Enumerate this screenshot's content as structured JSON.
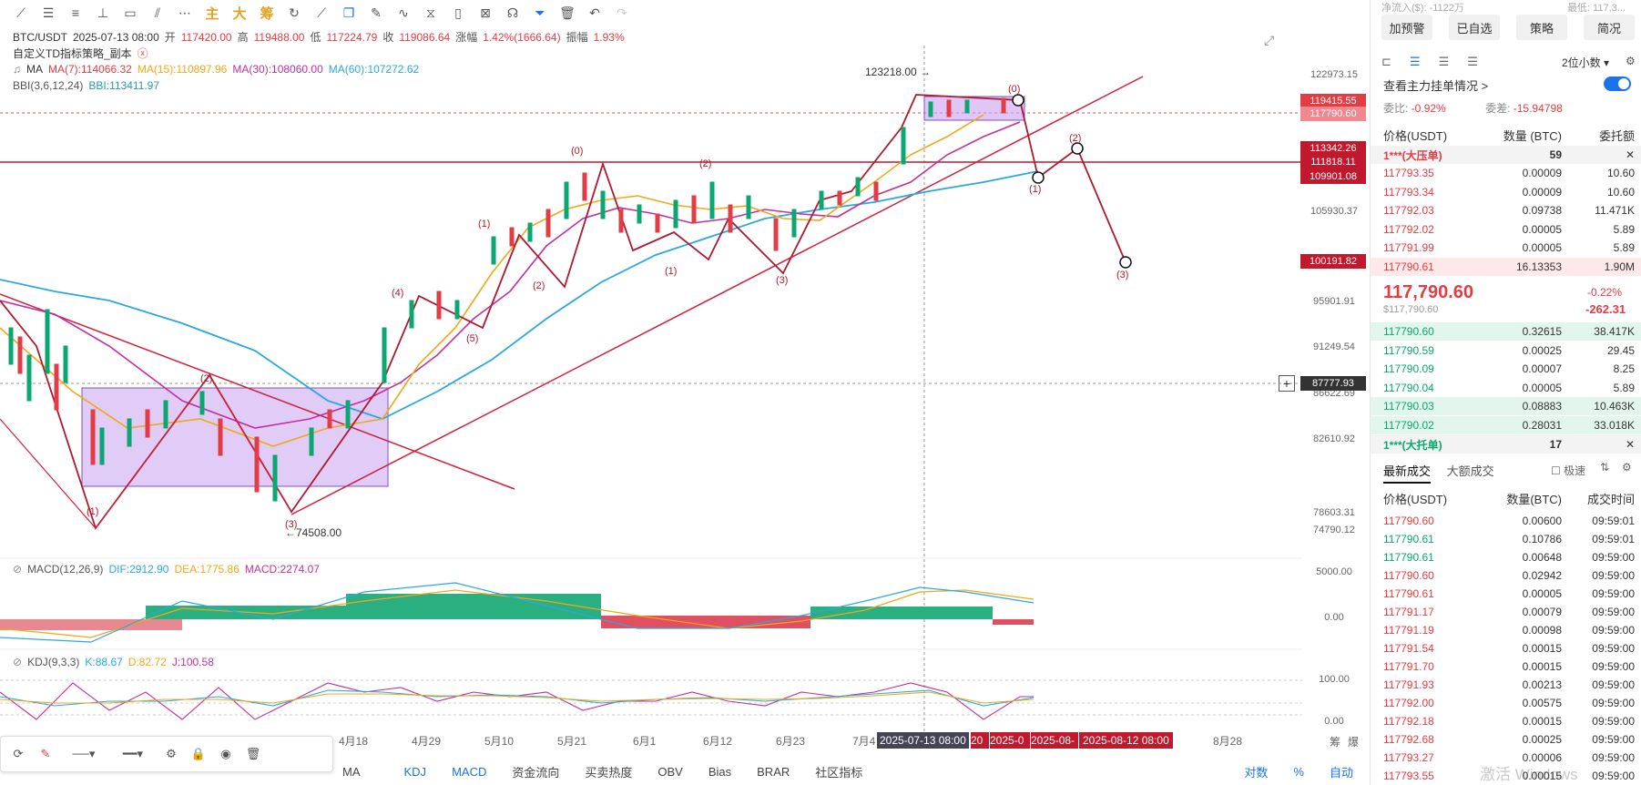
{
  "toolbar": {
    "icons": [
      "line-tool-icon",
      "hline-icon",
      "channel-icon",
      "crosshair-icon",
      "rect-icon",
      "fib-icon",
      "more-icon"
    ],
    "orange_labels": [
      "主",
      "大",
      "筹"
    ],
    "right_icons": [
      "indicator-icon",
      "ruler-icon",
      "brush-icon",
      "wave-icon",
      "calendar-icon",
      "note-icon",
      "measure-icon",
      "filter-icon",
      "trash-icon",
      "undo-icon",
      "redo-icon"
    ]
  },
  "ohlc": {
    "symbol": "BTC/USDT",
    "date": "2025-07-13 08:00",
    "open_label": "开",
    "open": "117420.00",
    "high_label": "高",
    "high": "119488.00",
    "low_label": "低",
    "low": "117224.79",
    "close_label": "收",
    "close": "119086.64",
    "change_label": "涨幅",
    "change": "1.42%(1666.64)",
    "amp_label": "振幅",
    "amp": "1.93%"
  },
  "strategy_label": "自定义TD指标策略_副本",
  "ma_legend": {
    "name": "MA",
    "ma7": "MA(7):114066.32",
    "ma15": "MA(15):110897.96",
    "ma30": "MA(30):108060.00",
    "ma60": "MA(60):107272.62"
  },
  "bbi_legend": {
    "name": "BBI(3,6,12,24)",
    "value": "BBI:113411.97"
  },
  "macd_legend": {
    "name": "MACD(12,26,9)",
    "dif": "DIF:2912.90",
    "dea": "DEA:1775.86",
    "macd": "MACD:2274.07"
  },
  "kdj_legend": {
    "name": "KDJ(9,3,3)",
    "k": "K:88.67",
    "d": "D:82.72",
    "j": "J:100.58"
  },
  "price_axis": [
    "122973.15",
    "105930.37",
    "95901.91",
    "91249.54",
    "86622.69",
    "82610.92",
    "78603.31",
    "74790.12"
  ],
  "macd_axis": [
    "5000.00",
    "0.00"
  ],
  "kdj_axis": [
    "100.00",
    "0.00"
  ],
  "price_tags": {
    "t1": "119415.55",
    "t2": "117790.60",
    "t3": "113342.26",
    "t4": "111818.11",
    "t5": "109901.08",
    "t6": "100191.82",
    "crosshair": "87777.93"
  },
  "annotations": {
    "high": "123218.00 →",
    "low": "←74508.00",
    "waves": [
      "(1)",
      "(2)",
      "(3)",
      "(4)",
      "(5)",
      "(1)",
      "(2)",
      "(0)",
      "(2)",
      "(1)",
      "(3)",
      "(0)",
      "(2)",
      "(1)",
      "(3)"
    ]
  },
  "x_axis": [
    "4月18",
    "4月29",
    "5月10",
    "5月21",
    "6月1",
    "6月12",
    "6月23",
    "7月4",
    "8月28"
  ],
  "x_tags": {
    "current": "2025-07-13 08:00",
    "a": "20",
    "b": "2025-0",
    "c": "2025-08-",
    "d": "2025-08-12 08:00"
  },
  "axis_controls": {
    "log": "对数",
    "pct": "%",
    "auto": "自动",
    "corner1": "筹",
    "corner2": "爆"
  },
  "bottom_tabs": [
    "MA",
    "KDJ",
    "MACD",
    "资金流向",
    "买卖热度",
    "OBV",
    "Bias",
    "BRAR",
    "社区指标"
  ],
  "right_panel": {
    "top_cut_left": "净流入($): -1122万",
    "top_cut_right": "最低: 117,3...",
    "buttons": [
      "加预警",
      "已自选",
      "策略",
      "简况"
    ],
    "decimals": "2位小数",
    "order_check": "查看主力挂单情况 >",
    "wb_label": "委比:",
    "wb": "-0.92%",
    "wc_label": "委差:",
    "wc": "-15.94798",
    "book_headers": [
      "价格(USDT)",
      "数量 (BTC)",
      "委托额"
    ],
    "big_ask": {
      "label": "1***(大压单)",
      "qty": "59"
    },
    "asks": [
      [
        "117793.35",
        "0.00009",
        "10.60"
      ],
      [
        "117793.34",
        "0.00009",
        "10.60"
      ],
      [
        "117792.03",
        "0.09738",
        "11.471K"
      ],
      [
        "117792.02",
        "0.00005",
        "5.89"
      ],
      [
        "117791.99",
        "0.00005",
        "5.89"
      ],
      [
        "117790.61",
        "16.13353",
        "1.90M"
      ]
    ],
    "last_price": "117,790.60",
    "last_price_usd": "$117,790.60",
    "last_change_pct": "-0.22%",
    "last_change_abs": "-262.31",
    "bids": [
      [
        "117790.60",
        "0.32615",
        "38.417K"
      ],
      [
        "117790.59",
        "0.00025",
        "29.45"
      ],
      [
        "117790.09",
        "0.00007",
        "8.25"
      ],
      [
        "117790.04",
        "0.00005",
        "5.89"
      ],
      [
        "117790.03",
        "0.08883",
        "10.463K"
      ],
      [
        "117790.02",
        "0.28031",
        "33.018K"
      ]
    ],
    "big_bid": {
      "label": "1***(大托单)",
      "qty": "17"
    },
    "trade_tabs": [
      "最新成交",
      "大额成交"
    ],
    "fast_label": "极速",
    "trade_headers": [
      "价格(USDT)",
      "数量(BTC)",
      "成交时间"
    ],
    "trades": [
      [
        "117790.60",
        "0.00600",
        "09:59:01",
        "red"
      ],
      [
        "117790.61",
        "0.10786",
        "09:59:01",
        "green"
      ],
      [
        "117790.61",
        "0.00648",
        "09:59:00",
        "green"
      ],
      [
        "117790.60",
        "0.02942",
        "09:59:00",
        "red"
      ],
      [
        "117790.61",
        "0.00005",
        "09:59:00",
        "red"
      ],
      [
        "117791.17",
        "0.00079",
        "09:59:00",
        "red"
      ],
      [
        "117791.19",
        "0.00098",
        "09:59:00",
        "red"
      ],
      [
        "117791.54",
        "0.00015",
        "09:59:00",
        "red"
      ],
      [
        "117791.70",
        "0.00015",
        "09:59:00",
        "red"
      ],
      [
        "117791.93",
        "0.00213",
        "09:59:00",
        "red"
      ],
      [
        "117792.00",
        "0.00575",
        "09:59:00",
        "red"
      ],
      [
        "117792.18",
        "0.00015",
        "09:59:00",
        "red"
      ],
      [
        "117792.68",
        "0.00025",
        "09:59:00",
        "red"
      ],
      [
        "117793.27",
        "0.00006",
        "09:59:00",
        "red"
      ],
      [
        "117793.55",
        "0.00015",
        "09:59:00",
        "red"
      ]
    ],
    "watermark": "激活 Windows"
  }
}
